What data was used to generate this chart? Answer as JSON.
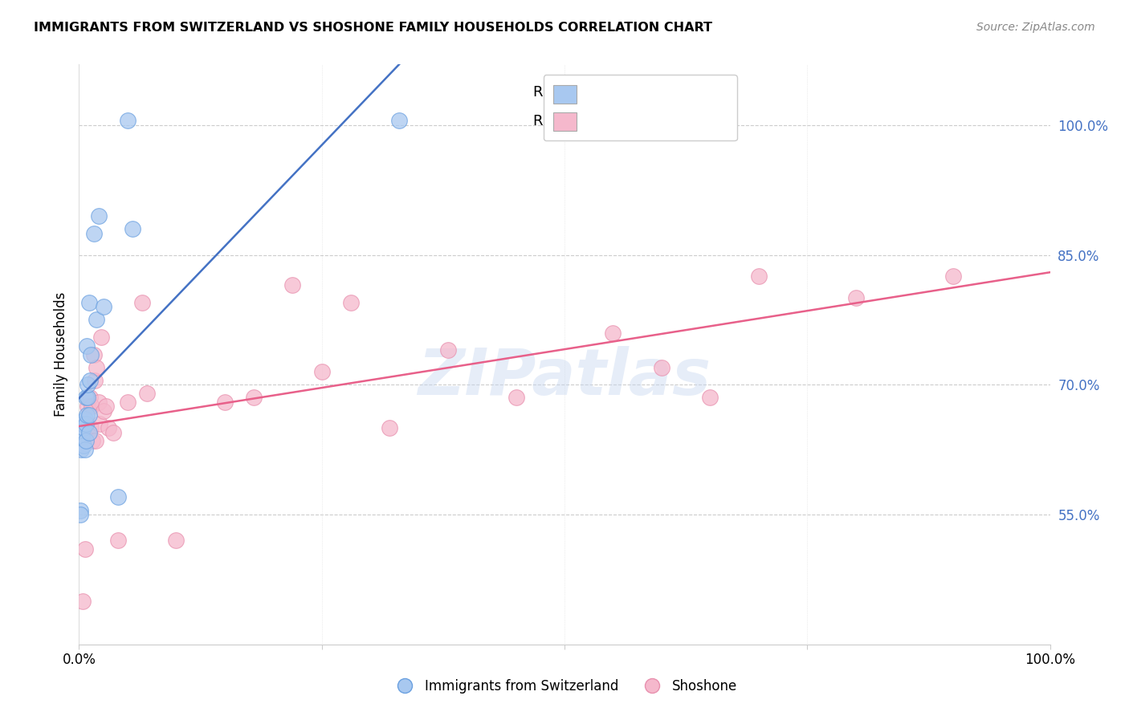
{
  "title": "IMMIGRANTS FROM SWITZERLAND VS SHOSHONE FAMILY HOUSEHOLDS CORRELATION CHART",
  "source": "Source: ZipAtlas.com",
  "ylabel": "Family Households",
  "y_ticks": [
    55.0,
    70.0,
    85.0,
    100.0
  ],
  "blue_color": "#A8C8F0",
  "pink_color": "#F5B8CC",
  "blue_line_color": "#4472C4",
  "pink_line_color": "#E8608A",
  "blue_edge_color": "#6AA0E0",
  "pink_edge_color": "#E890AE",
  "watermark": "ZIPatlas",
  "swiss_points_x": [
    0.1,
    0.15,
    0.2,
    0.2,
    0.3,
    0.4,
    0.5,
    0.5,
    0.6,
    0.6,
    0.7,
    0.7,
    0.7,
    0.8,
    0.8,
    0.9,
    0.9,
    1.0,
    1.0,
    1.0,
    1.1,
    1.2,
    1.5,
    1.8,
    2.0,
    2.5,
    4.0,
    5.0,
    5.5,
    33.0
  ],
  "swiss_points_y": [
    55.5,
    55.0,
    64.5,
    62.5,
    64.0,
    65.5,
    63.0,
    65.0,
    66.0,
    62.5,
    63.5,
    65.5,
    68.5,
    66.5,
    74.5,
    68.5,
    70.0,
    79.5,
    66.5,
    64.5,
    70.5,
    73.5,
    87.5,
    77.5,
    89.5,
    79.0,
    57.0,
    100.5,
    88.0,
    100.5
  ],
  "shoshone_points_x": [
    0.4,
    0.6,
    0.8,
    0.9,
    1.0,
    1.1,
    1.2,
    1.3,
    1.4,
    1.5,
    1.6,
    1.7,
    1.8,
    2.0,
    2.1,
    2.3,
    2.5,
    2.8,
    3.0,
    3.5,
    4.0,
    5.0,
    6.5,
    7.0,
    10.0,
    15.0,
    18.0,
    22.0,
    25.0,
    28.0,
    32.0,
    38.0,
    45.0,
    55.0,
    60.0,
    65.0,
    70.0,
    80.0,
    90.0
  ],
  "shoshone_points_y": [
    45.0,
    51.0,
    65.5,
    67.5,
    64.5,
    68.5,
    65.0,
    67.5,
    63.5,
    73.5,
    70.5,
    63.5,
    72.0,
    68.0,
    65.5,
    75.5,
    67.0,
    67.5,
    65.0,
    64.5,
    52.0,
    68.0,
    79.5,
    69.0,
    52.0,
    68.0,
    68.5,
    81.5,
    71.5,
    79.5,
    65.0,
    74.0,
    68.5,
    76.0,
    72.0,
    68.5,
    82.5,
    80.0,
    82.5
  ]
}
